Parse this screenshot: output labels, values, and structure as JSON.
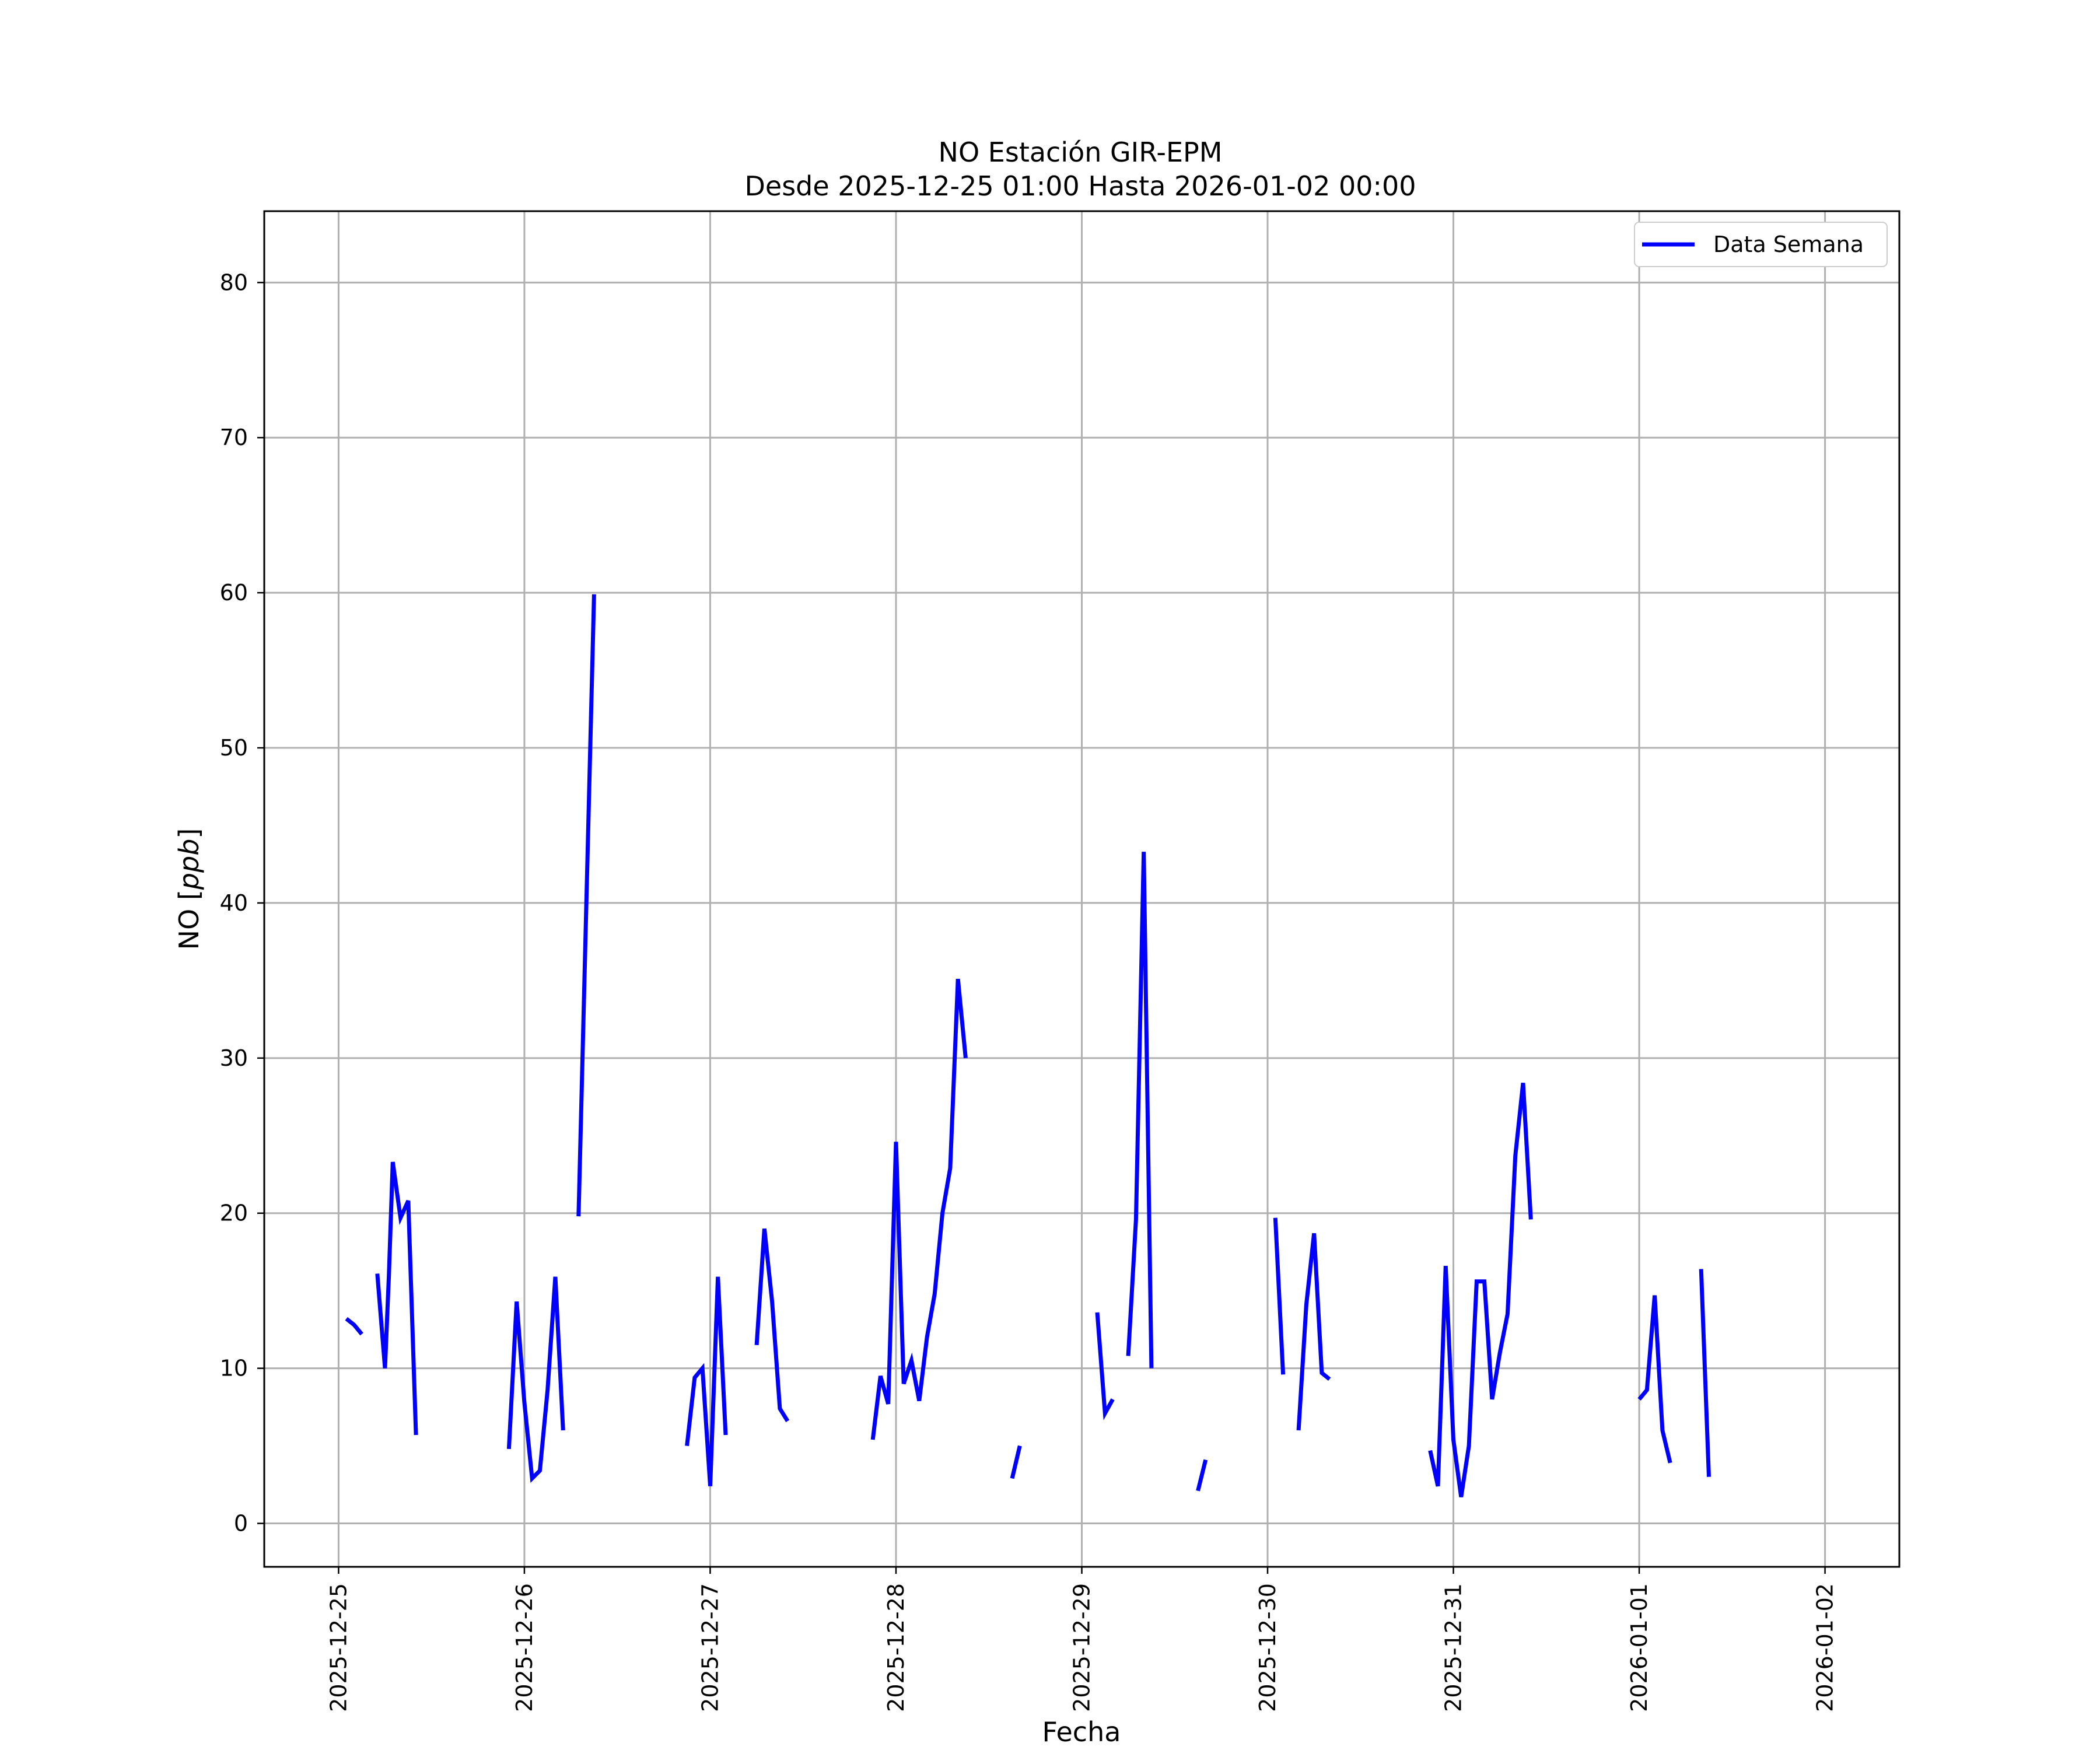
{
  "chart_data": {
    "type": "line",
    "title": "NO Estación GIR-EPM",
    "subtitle": "Desde 2025-12-25 01:00 Hasta 2026-01-02 00:00",
    "xlabel": "Fecha",
    "ylabel_prefix": "NO [",
    "ylabel_unit": "ppb",
    "ylabel_suffix": "]",
    "xlim": [
      "2025-12-24 14:24",
      "2026-01-02 09:36"
    ],
    "ylim": [
      -2.8,
      84.6
    ],
    "x_ticks": [
      "2025-12-25",
      "2025-12-26",
      "2025-12-27",
      "2025-12-28",
      "2025-12-29",
      "2025-12-30",
      "2025-12-31",
      "2026-01-01",
      "2026-01-02"
    ],
    "y_ticks": [
      0,
      10,
      20,
      30,
      40,
      50,
      60,
      70,
      80
    ],
    "grid": true,
    "legend_position": "top-right",
    "line_color": "#0000ff",
    "series": [
      {
        "name": "Data Semana",
        "segments": [
          [
            [
              "2025-12-25 01:00",
              13.2
            ],
            [
              "2025-12-25 02:00",
              12.8
            ],
            [
              "2025-12-25 03:00",
              12.2
            ]
          ],
          [
            [
              "2025-12-25 05:00",
              16.1
            ],
            [
              "2025-12-25 06:00",
              10.0
            ],
            [
              "2025-12-25 06:30",
              16.0
            ],
            [
              "2025-12-25 07:00",
              23.3
            ],
            [
              "2025-12-25 08:00",
              19.7
            ],
            [
              "2025-12-25 09:00",
              20.8
            ],
            [
              "2025-12-25 10:00",
              5.7
            ]
          ],
          [
            [
              "2025-12-25 22:00",
              4.8
            ],
            [
              "2025-12-25 23:00",
              14.3
            ],
            [
              "2025-12-26 00:00",
              7.8
            ],
            [
              "2025-12-26 01:00",
              2.9
            ],
            [
              "2025-12-26 02:00",
              3.4
            ],
            [
              "2025-12-26 03:00",
              8.6
            ],
            [
              "2025-12-26 04:00",
              15.9
            ],
            [
              "2025-12-26 05:00",
              6.0
            ]
          ],
          [
            [
              "2025-12-26 07:00",
              19.8
            ],
            [
              "2025-12-26 09:00",
              59.9
            ]
          ],
          [
            [
              "2025-12-26 21:00",
              5.0
            ],
            [
              "2025-12-26 22:00",
              9.4
            ],
            [
              "2025-12-26 23:00",
              10.0
            ],
            [
              "2025-12-27 00:00",
              2.4
            ],
            [
              "2025-12-27 01:00",
              15.9
            ],
            [
              "2025-12-27 02:00",
              5.7
            ]
          ],
          [
            [
              "2025-12-27 06:00",
              11.5
            ],
            [
              "2025-12-27 07:00",
              19.0
            ],
            [
              "2025-12-27 08:00",
              14.3
            ],
            [
              "2025-12-27 09:00",
              7.4
            ],
            [
              "2025-12-27 10:00",
              6.6
            ]
          ],
          [
            [
              "2025-12-27 21:00",
              5.4
            ],
            [
              "2025-12-27 22:00",
              9.5
            ],
            [
              "2025-12-27 23:00",
              7.7
            ],
            [
              "2025-12-28 00:00",
              24.6
            ],
            [
              "2025-12-28 01:00",
              9.0
            ],
            [
              "2025-12-28 02:00",
              10.5
            ],
            [
              "2025-12-28 03:00",
              7.9
            ],
            [
              "2025-12-28 04:00",
              12.0
            ],
            [
              "2025-12-28 05:00",
              14.8
            ],
            [
              "2025-12-28 06:00",
              20.0
            ],
            [
              "2025-12-28 07:00",
              22.9
            ],
            [
              "2025-12-28 08:00",
              35.1
            ],
            [
              "2025-12-28 09:00",
              30.0
            ]
          ],
          [
            [
              "2025-12-28 15:00",
              2.9
            ],
            [
              "2025-12-28 16:00",
              5.0
            ]
          ],
          [
            [
              "2025-12-29 02:00",
              13.6
            ],
            [
              "2025-12-29 03:00",
              7.1
            ],
            [
              "2025-12-29 04:00",
              8.0
            ]
          ],
          [
            [
              "2025-12-29 06:00",
              10.8
            ],
            [
              "2025-12-29 07:00",
              19.6
            ],
            [
              "2025-12-29 08:00",
              43.3
            ],
            [
              "2025-12-29 09:00",
              10.0
            ]
          ],
          [
            [
              "2025-12-29 15:00",
              2.1
            ],
            [
              "2025-12-29 16:00",
              4.1
            ]
          ],
          [
            [
              "2025-12-30 01:00",
              19.7
            ],
            [
              "2025-12-30 02:00",
              9.6
            ]
          ],
          [
            [
              "2025-12-30 04:00",
              6.0
            ],
            [
              "2025-12-30 05:00",
              14.1
            ],
            [
              "2025-12-30 06:00",
              18.7
            ],
            [
              "2025-12-30 07:00",
              9.7
            ],
            [
              "2025-12-30 08:00",
              9.3
            ]
          ],
          [
            [
              "2025-12-30 21:00",
              4.7
            ],
            [
              "2025-12-30 22:00",
              2.4
            ],
            [
              "2025-12-30 23:00",
              16.6
            ],
            [
              "2025-12-31 00:00",
              5.4
            ],
            [
              "2025-12-31 01:00",
              1.7
            ],
            [
              "2025-12-31 02:00",
              5.0
            ],
            [
              "2025-12-31 03:00",
              15.6
            ],
            [
              "2025-12-31 04:00",
              15.6
            ],
            [
              "2025-12-31 05:00",
              8.0
            ],
            [
              "2025-12-31 06:00",
              11.0
            ],
            [
              "2025-12-31 07:00",
              13.5
            ],
            [
              "2025-12-31 08:00",
              23.7
            ],
            [
              "2025-12-31 09:00",
              28.4
            ],
            [
              "2025-12-31 10:00",
              19.6
            ]
          ],
          [
            [
              "2026-01-01 00:00",
              8.0
            ],
            [
              "2026-01-01 01:00",
              8.6
            ],
            [
              "2026-01-01 02:00",
              14.7
            ],
            [
              "2026-01-01 03:00",
              6.0
            ],
            [
              "2026-01-01 04:00",
              3.9
            ]
          ],
          [
            [
              "2026-01-01 08:00",
              16.4
            ],
            [
              "2026-01-01 09:00",
              3.0
            ]
          ]
        ]
      }
    ]
  }
}
